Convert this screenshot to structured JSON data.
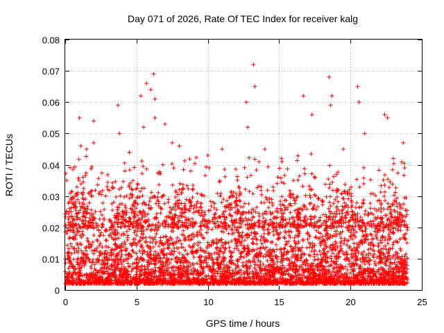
{
  "chart_data": {
    "type": "scatter",
    "title": "Day 071 of 2026, Rate Of TEC Index for receiver kalg",
    "xlabel": "GPS time / hours",
    "ylabel": "ROTI / TECUs",
    "xlim": [
      0,
      25
    ],
    "ylim": [
      0,
      0.08
    ],
    "xticks": [
      0,
      5,
      10,
      15,
      20,
      25
    ],
    "xtick_labels": [
      "0",
      "5",
      "10",
      "15",
      "20",
      "25"
    ],
    "yticks": [
      0,
      0.01,
      0.02,
      0.03,
      0.04,
      0.05,
      0.06,
      0.07,
      0.08
    ],
    "ytick_labels": [
      "0",
      "0.01",
      "0.02",
      "0.03",
      "0.04",
      "0.05",
      "0.06",
      "0.07",
      "0.08"
    ],
    "grid": true,
    "marker": "+",
    "color": "#ff0000",
    "series": [
      {
        "name": "ROTI",
        "x": [
          0.1,
          0.3,
          0.5,
          1.0,
          1.1,
          1.5,
          2.0,
          2.0,
          3.7,
          3.8,
          4.5,
          5.3,
          5.5,
          5.7,
          6.0,
          6.2,
          6.3,
          6.3,
          7.0,
          7.5,
          8.0,
          8.8,
          10.0,
          11.0,
          12.7,
          12.8,
          13.2,
          13.3,
          14.0,
          15.2,
          16.0,
          16.7,
          17.3,
          18.5,
          18.6,
          18.7,
          19.5,
          20.5,
          20.6,
          21.0,
          22.4,
          22.6,
          23.0,
          23.7,
          23.8
        ],
        "y": [
          0.035,
          0.026,
          0.022,
          0.055,
          0.046,
          0.045,
          0.054,
          0.047,
          0.059,
          0.05,
          0.044,
          0.062,
          0.052,
          0.066,
          0.064,
          0.069,
          0.061,
          0.055,
          0.053,
          0.047,
          0.046,
          0.038,
          0.043,
          0.045,
          0.06,
          0.052,
          0.072,
          0.065,
          0.045,
          0.041,
          0.035,
          0.062,
          0.056,
          0.068,
          0.059,
          0.062,
          0.045,
          0.065,
          0.06,
          0.05,
          0.056,
          0.055,
          0.042,
          0.047,
          0.039
        ]
      }
    ],
    "dense_band": {
      "description_values": "bulk of points",
      "typical_min": 0.002,
      "typical_max": 0.025
    }
  }
}
